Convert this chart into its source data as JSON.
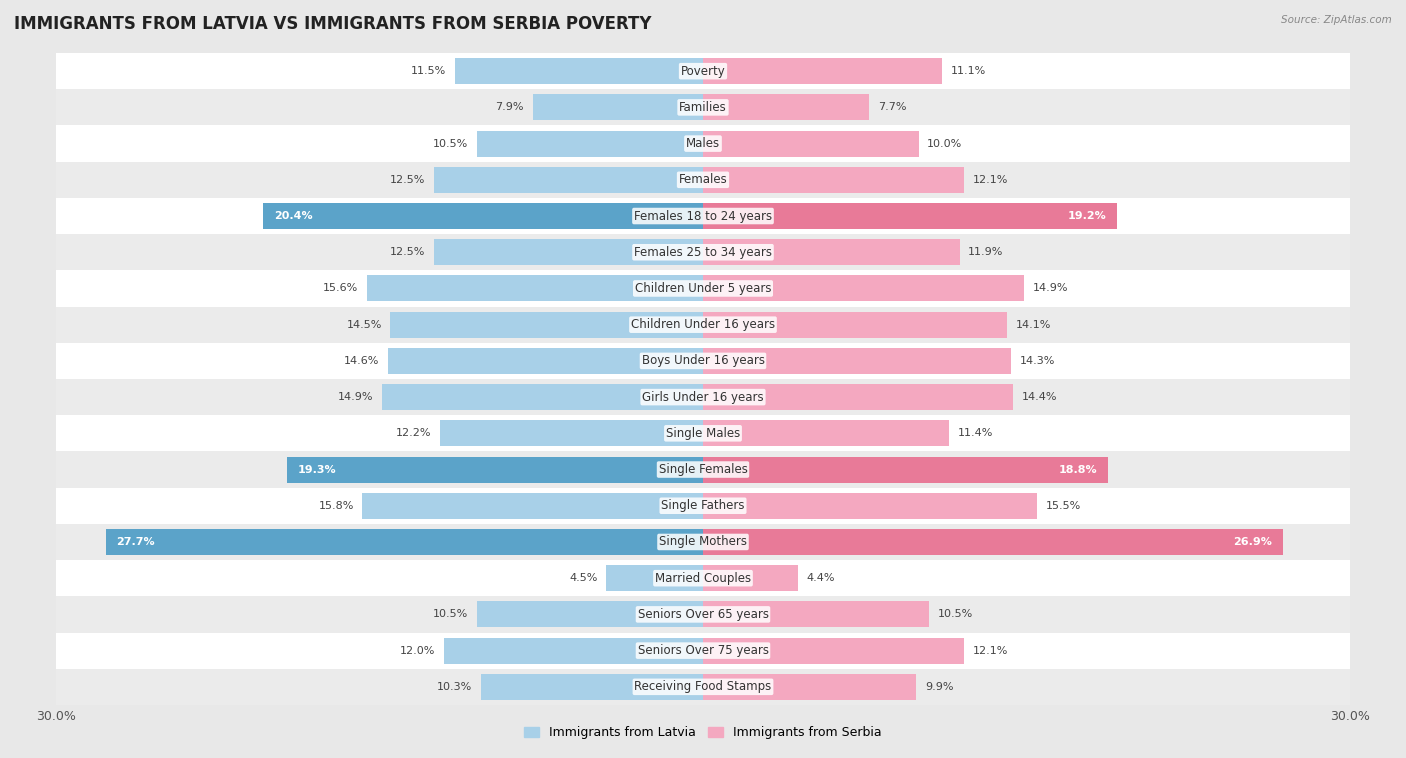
{
  "title": "IMMIGRANTS FROM LATVIA VS IMMIGRANTS FROM SERBIA POVERTY",
  "source": "Source: ZipAtlas.com",
  "categories": [
    "Poverty",
    "Families",
    "Males",
    "Females",
    "Females 18 to 24 years",
    "Females 25 to 34 years",
    "Children Under 5 years",
    "Children Under 16 years",
    "Boys Under 16 years",
    "Girls Under 16 years",
    "Single Males",
    "Single Females",
    "Single Fathers",
    "Single Mothers",
    "Married Couples",
    "Seniors Over 65 years",
    "Seniors Over 75 years",
    "Receiving Food Stamps"
  ],
  "latvia_values": [
    11.5,
    7.9,
    10.5,
    12.5,
    20.4,
    12.5,
    15.6,
    14.5,
    14.6,
    14.9,
    12.2,
    19.3,
    15.8,
    27.7,
    4.5,
    10.5,
    12.0,
    10.3
  ],
  "serbia_values": [
    11.1,
    7.7,
    10.0,
    12.1,
    19.2,
    11.9,
    14.9,
    14.1,
    14.3,
    14.4,
    11.4,
    18.8,
    15.5,
    26.9,
    4.4,
    10.5,
    12.1,
    9.9
  ],
  "latvia_color": "#A8D0E8",
  "serbia_color": "#F4A8C0",
  "latvia_highlight_color": "#5BA3C9",
  "serbia_highlight_color": "#E87A98",
  "highlight_rows": [
    4,
    11,
    13
  ],
  "row_color_even": "#FFFFFF",
  "row_color_odd": "#EBEBEB",
  "background_color": "#E8E8E8",
  "xlim": 30.0,
  "legend_latvia": "Immigrants from Latvia",
  "legend_serbia": "Immigrants from Serbia",
  "bar_height": 0.72,
  "title_fontsize": 12,
  "label_fontsize": 8.5,
  "value_fontsize": 8,
  "axis_tick_fontsize": 9
}
